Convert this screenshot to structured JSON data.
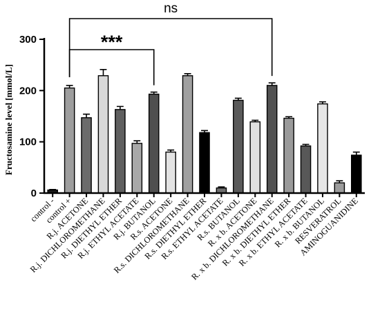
{
  "chart_data": {
    "type": "bar",
    "ylabel": "Fructosamine level [mmol/L]",
    "xlabel": "",
    "ylim": [
      0,
      300
    ],
    "yticks": [
      "0",
      "100",
      "200",
      "300"
    ],
    "grid": false,
    "categories": [
      "control -",
      "control +",
      "R.j. ACETONE",
      "R.j. DICHLOROMETHANE",
      "R.j. DIETHYL ETHER",
      "R.j. ETHYL ACETATE",
      "R.j. BUTANOL",
      "R.s. ACETONE",
      "R.s. DICHLOROMETHANE",
      "R.s. DIETHYL ETHER",
      "R.s. ETHYL ACETATE",
      "R.s. BUTANOL",
      "R. x b. ACETONE",
      "R. x b. DICHLOROMETHANE",
      "R. x b. DIETHYL ETHER",
      "R. x b. ETHYL ACETATE",
      "R. x b. BUTANOL",
      "RESVERATROL",
      "AMINOGUANIDINE"
    ],
    "values": [
      6,
      205,
      147,
      229,
      163,
      97,
      193,
      80,
      229,
      118,
      10,
      181,
      139,
      210,
      146,
      92,
      174,
      20,
      74
    ],
    "errors": [
      1,
      5,
      7,
      12,
      6,
      5,
      4,
      4,
      4,
      4,
      2,
      4,
      3,
      5,
      3,
      3,
      4,
      4,
      6
    ],
    "colors": [
      "#1a1a1a",
      "#9e9e9e",
      "#6b6b6b",
      "#d9d9d9",
      "#5f5f5f",
      "#a8a8a8",
      "#4f4f4f",
      "#e3e3e3",
      "#a0a0a0",
      "#000000",
      "#6e6e6e",
      "#5a5a5a",
      "#e0e0e0",
      "#525252",
      "#9a9a9a",
      "#585858",
      "#e6e6e6",
      "#9c9c9c",
      "#000000"
    ],
    "annotations": [
      {
        "label": "ns",
        "from": "control +",
        "to": "R. x b. DICHLOROMETHANE"
      },
      {
        "label": "***",
        "from": "control +",
        "to": "R.j. BUTANOL"
      }
    ]
  }
}
